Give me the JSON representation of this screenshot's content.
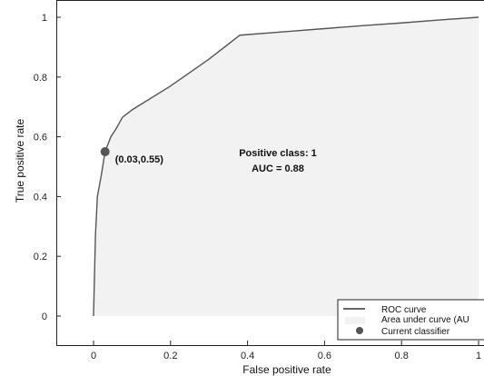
{
  "chart_data": {
    "type": "area",
    "xlabel": "False positive rate",
    "ylabel": "True positive rate",
    "xlim": [
      -0.1,
      1.0
    ],
    "ylim": [
      -0.1,
      1.0
    ],
    "x_ticks": [
      0,
      0.2,
      0.4,
      0.6,
      0.8,
      1
    ],
    "y_ticks": [
      0,
      0.2,
      0.4,
      0.6,
      0.8,
      1
    ],
    "x_tick_labels": [
      "0",
      "0.2",
      "0.4",
      "0.6",
      "0.8",
      "1"
    ],
    "y_tick_labels": [
      "0",
      "0.2",
      "0.4",
      "0.6",
      "0.8",
      "1"
    ],
    "series": [
      {
        "name": "ROC curve",
        "x": [
          0,
          0.005,
          0.01,
          0.02,
          0.03,
          0.045,
          0.06,
          0.075,
          0.1,
          0.2,
          0.3,
          0.38,
          0.5,
          0.6,
          0.7,
          0.8,
          0.9,
          1.0
        ],
        "y": [
          0,
          0.27,
          0.4,
          0.47,
          0.55,
          0.6,
          0.63,
          0.665,
          0.69,
          0.77,
          0.86,
          0.94,
          0.952,
          0.962,
          0.972,
          0.981,
          0.991,
          1.0
        ]
      }
    ],
    "current_classifier": {
      "x": 0.03,
      "y": 0.55,
      "label": "(0.03,0.55)"
    },
    "annotation": {
      "line1": "Positive class: 1",
      "line2": "AUC = 0.88"
    },
    "legend": {
      "placement": "bottom-right",
      "items": [
        {
          "label": "ROC curve",
          "kind": "line"
        },
        {
          "label": "Area under curve (AU",
          "kind": "area"
        },
        {
          "label": "Current classifier",
          "kind": "marker"
        }
      ]
    },
    "grid": false
  },
  "colors": {
    "curve": "#555555",
    "area": "#f2f2f2",
    "marker": "#555555",
    "axis": "#222222"
  }
}
